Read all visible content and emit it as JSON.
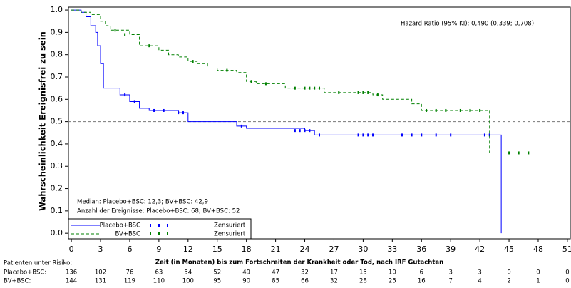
{
  "chart_data": {
    "type": "step",
    "y_label": "Wahrscheinlichkeit Ereignisfrei zu sein",
    "x_label": "Zeit (in Monaten)  bis zum Fortschreiten  der Krankheit  oder Tod, nach IRF Gutachten",
    "annotations": [
      "Hazard Ratio (95% KI): 0,490 (0,339; 0,708)",
      "Median: Placebo+BSC: 12,3; BV+BSC: 42,9",
      "Anzahl der Ereignisse: Placebo+BSC: 68; BV+BSC: 52"
    ],
    "xlim": [
      -0.3,
      51.3
    ],
    "xticks": [
      0,
      3,
      6,
      9,
      12,
      15,
      18,
      21,
      24,
      27,
      30,
      33,
      36,
      39,
      42,
      45,
      48,
      51
    ],
    "ylim": [
      -0.025,
      1.013
    ],
    "yticks": [
      {
        "value": 0,
        "label": "0.0"
      },
      0.1,
      0.2,
      0.3,
      0.4,
      0.5,
      0.6,
      0.7,
      0.8,
      0.9,
      {
        "value": 1,
        "label": "1.0"
      }
    ],
    "reference_line": 0.5,
    "series": [
      {
        "name": "Placebo+BSC",
        "color": "#0000ff",
        "dash": false,
        "censor_label": "Zensuriert",
        "x": [
          0,
          1,
          1.5,
          2,
          2.5,
          2.7,
          3,
          3.3,
          5,
          6,
          7,
          8,
          11,
          12,
          17,
          18,
          24,
          25,
          44.2
        ],
        "values": [
          1.0,
          0.99,
          0.97,
          0.93,
          0.9,
          0.84,
          0.76,
          0.65,
          0.62,
          0.59,
          0.56,
          0.55,
          0.54,
          0.5,
          0.48,
          0.47,
          0.46,
          0.44,
          0.0
        ],
        "censored_x": [
          5.5,
          6.5,
          8.5,
          9.5,
          11,
          11.5,
          17.5,
          23,
          23.5,
          24,
          24.5,
          25.5,
          29.5,
          30,
          30.5,
          31,
          34,
          35,
          36,
          37.5,
          39,
          42.5,
          43
        ],
        "censored_values": [
          0.62,
          0.59,
          0.55,
          0.55,
          0.54,
          0.54,
          0.48,
          0.46,
          0.46,
          0.46,
          0.46,
          0.44,
          0.44,
          0.44,
          0.44,
          0.44,
          0.44,
          0.44,
          0.44,
          0.44,
          0.44,
          0.44,
          0.44
        ]
      },
      {
        "name": "BV+BSC",
        "color": "#008000",
        "dash": true,
        "censor_label": "Zensuriert",
        "x": [
          0,
          1,
          2,
          3,
          3.5,
          4,
          6,
          7,
          9,
          10,
          11,
          12,
          13,
          14,
          15,
          17,
          18,
          19,
          22,
          26,
          31,
          32,
          35,
          36,
          43,
          48
        ],
        "values": [
          1.0,
          0.99,
          0.98,
          0.95,
          0.93,
          0.91,
          0.89,
          0.84,
          0.82,
          0.8,
          0.79,
          0.77,
          0.76,
          0.74,
          0.73,
          0.72,
          0.68,
          0.67,
          0.65,
          0.63,
          0.62,
          0.6,
          0.58,
          0.55,
          0.36,
          0.36
        ],
        "censored_x": [
          4.5,
          5.5,
          8,
          12.5,
          16,
          18.5,
          20,
          23,
          24,
          24.5,
          25,
          25.5,
          27.5,
          29.5,
          30,
          30.5,
          31.5,
          36.5,
          37.5,
          38.5,
          40,
          41,
          42,
          45,
          46,
          47
        ],
        "censored_values": [
          0.91,
          0.89,
          0.84,
          0.77,
          0.73,
          0.68,
          0.67,
          0.65,
          0.65,
          0.65,
          0.65,
          0.65,
          0.63,
          0.63,
          0.63,
          0.63,
          0.62,
          0.55,
          0.55,
          0.55,
          0.55,
          0.55,
          0.55,
          0.36,
          0.36,
          0.36
        ]
      }
    ],
    "risk_table": {
      "title": "Patienten unter Risiko:",
      "rows": [
        {
          "label": "Placebo+BSC:",
          "values": [
            136,
            102,
            76,
            63,
            54,
            52,
            49,
            47,
            32,
            17,
            15,
            10,
            6,
            3,
            3,
            0,
            0,
            0
          ]
        },
        {
          "label": "BV+BSC:",
          "values": [
            144,
            131,
            119,
            110,
            100,
            95,
            90,
            85,
            66,
            32,
            28,
            25,
            16,
            7,
            4,
            2,
            1,
            0
          ]
        }
      ]
    }
  }
}
